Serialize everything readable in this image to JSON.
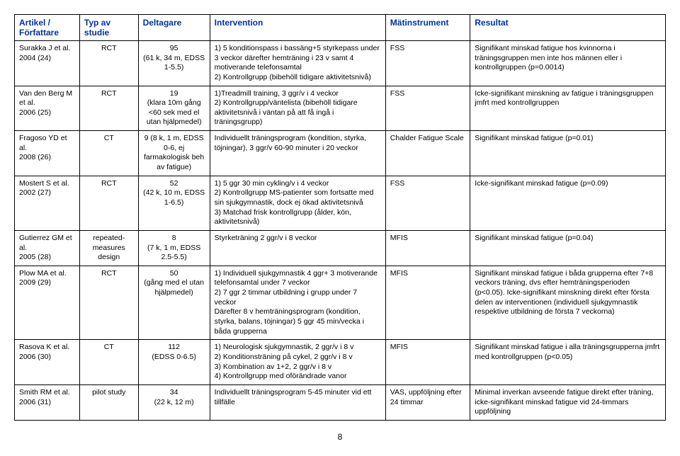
{
  "table": {
    "headers": [
      "Artikel / Författare",
      "Typ av studie",
      "Deltagare",
      "Intervention",
      "Mätinstrument",
      "Resultat"
    ],
    "rows": [
      {
        "author": "Surakka J et al.\n2004 (24)",
        "type": "RCT",
        "participants": "95\n(61 k, 34 m, EDSS 1-5.5)",
        "intervention": "1) 5 konditionspass i bassäng+5 styrkepass under 3 veckor därefter hemträning i 23 v samt 4 motiverande telefonsamtal\n2) Kontrollgrupp (bibehöll tidigare aktivitetsnivå)",
        "instrument": "FSS",
        "result": "Signifikant minskad fatigue hos kvinnorna i träningsgruppen men inte hos männen eller i kontrollgruppen (p=0.0014)"
      },
      {
        "author": "Van den Berg M et al.\n2006 (25)",
        "type": "RCT",
        "participants": "19\n(klara 10m gång <60 sek med el utan hjälpmedel)",
        "intervention": "1)Treadmill training, 3 ggr/v i 4 veckor\n2) Kontrollgrupp/väntelista (bibehöll tidigare aktivitetsnivå i väntan på att få ingå i träningsgrupp)",
        "instrument": "FSS",
        "result": "Icke-signifikant minskning av fatigue i träningsgruppen jmfrt med kontrollgruppen"
      },
      {
        "author": "Fragoso YD et al.\n2008 (26)",
        "type": "CT",
        "participants": "9 (8 k, 1 m, EDSS 0-6, ej farmakologisk beh av fatigue)",
        "intervention": "Individuellt träningsprogram (kondition, styrka, töjningar), 3 ggr/v 60-90 minuter i 20 veckor",
        "instrument": "Chalder Fatigue Scale",
        "result": "Signifikant minskad fatigue (p=0.01)"
      },
      {
        "author": "Mostert S et al.\n2002 (27)",
        "type": "RCT",
        "participants": "52\n(42 k, 10 m, EDSS 1-6.5)",
        "intervention": "1) 5 ggr 30 min cykling/v i 4 veckor\n2) Kontrollgrupp MS-patienter som fortsatte med sin sjukgymnastik, dock ej ökad aktivitetsnivå\n3) Matchad frisk kontrollgrupp (ålder, kön, aktivitetsnivå)",
        "instrument": "FSS",
        "result": "Icke-signifikant minskad fatigue (p=0.09)"
      },
      {
        "author": "Gutierrez GM et al.\n2005 (28)",
        "type": "repeated-measures design",
        "participants": "8\n(7 k, 1 m, EDSS 2.5-5.5)",
        "intervention": "Styrketräning 2 ggr/v i 8 veckor",
        "instrument": "MFIS",
        "result": "Signifikant minskad fatigue (p=0.04)"
      },
      {
        "author": "Plow MA et al.\n2009 (29)",
        "type": "RCT",
        "participants": "50\n(gång med el utan hjälpmedel)",
        "intervention": "1) Individuell sjukgymnastik 4 ggr+ 3 motiverande telefonsamtal under 7 veckor\n2) 7 ggr 2 timmar utbildning i grupp under 7 veckor\nDärefter 8 v hemträningsprogram (kondition, styrka, balans, töjningar) 5 ggr 45 min/vecka i båda grupperna",
        "instrument": "MFIS",
        "result": "Signifikant minskad fatigue i båda grupperna efter 7+8 veckors träning, dvs efter hemträningsperioden (p<0.05). Icke-signifikant minskning direkt efter första delen av interventionen (individuell sjukgymnastik respektive utbildning de första 7 veckorna)"
      },
      {
        "author": "Rasova K et al.\n2006 (30)",
        "type": "CT",
        "participants": "112\n(EDSS 0-6.5)",
        "intervention": "1) Neurologisk sjukgymnastik, 2 ggr/v i 8 v\n2) Konditionsträning på cykel, 2 ggr/v i 8 v\n3) Kombination av 1+2, 2 ggr/v i 8 v\n4) Kontrollgrupp med oförändrade vanor",
        "instrument": "MFIS",
        "result": "Signifikant minskad fatigue i alla träningsgrupperna jmfrt med kontrollgruppen (p<0.05)"
      },
      {
        "author": "Smith RM et al.\n2006 (31)",
        "type": "pilot study",
        "participants": "34\n(22 k, 12 m)",
        "intervention": "Individuellt träningsprogram 5-45 minuter vid ett tillfälle",
        "instrument": "VAS, uppföljning efter 24 timmar",
        "result": "Minimal inverkan avseende fatigue direkt efter träning, icke-signifikant minskad fatigue vid 24-timmars uppföljning"
      }
    ]
  },
  "pageNumber": "8"
}
